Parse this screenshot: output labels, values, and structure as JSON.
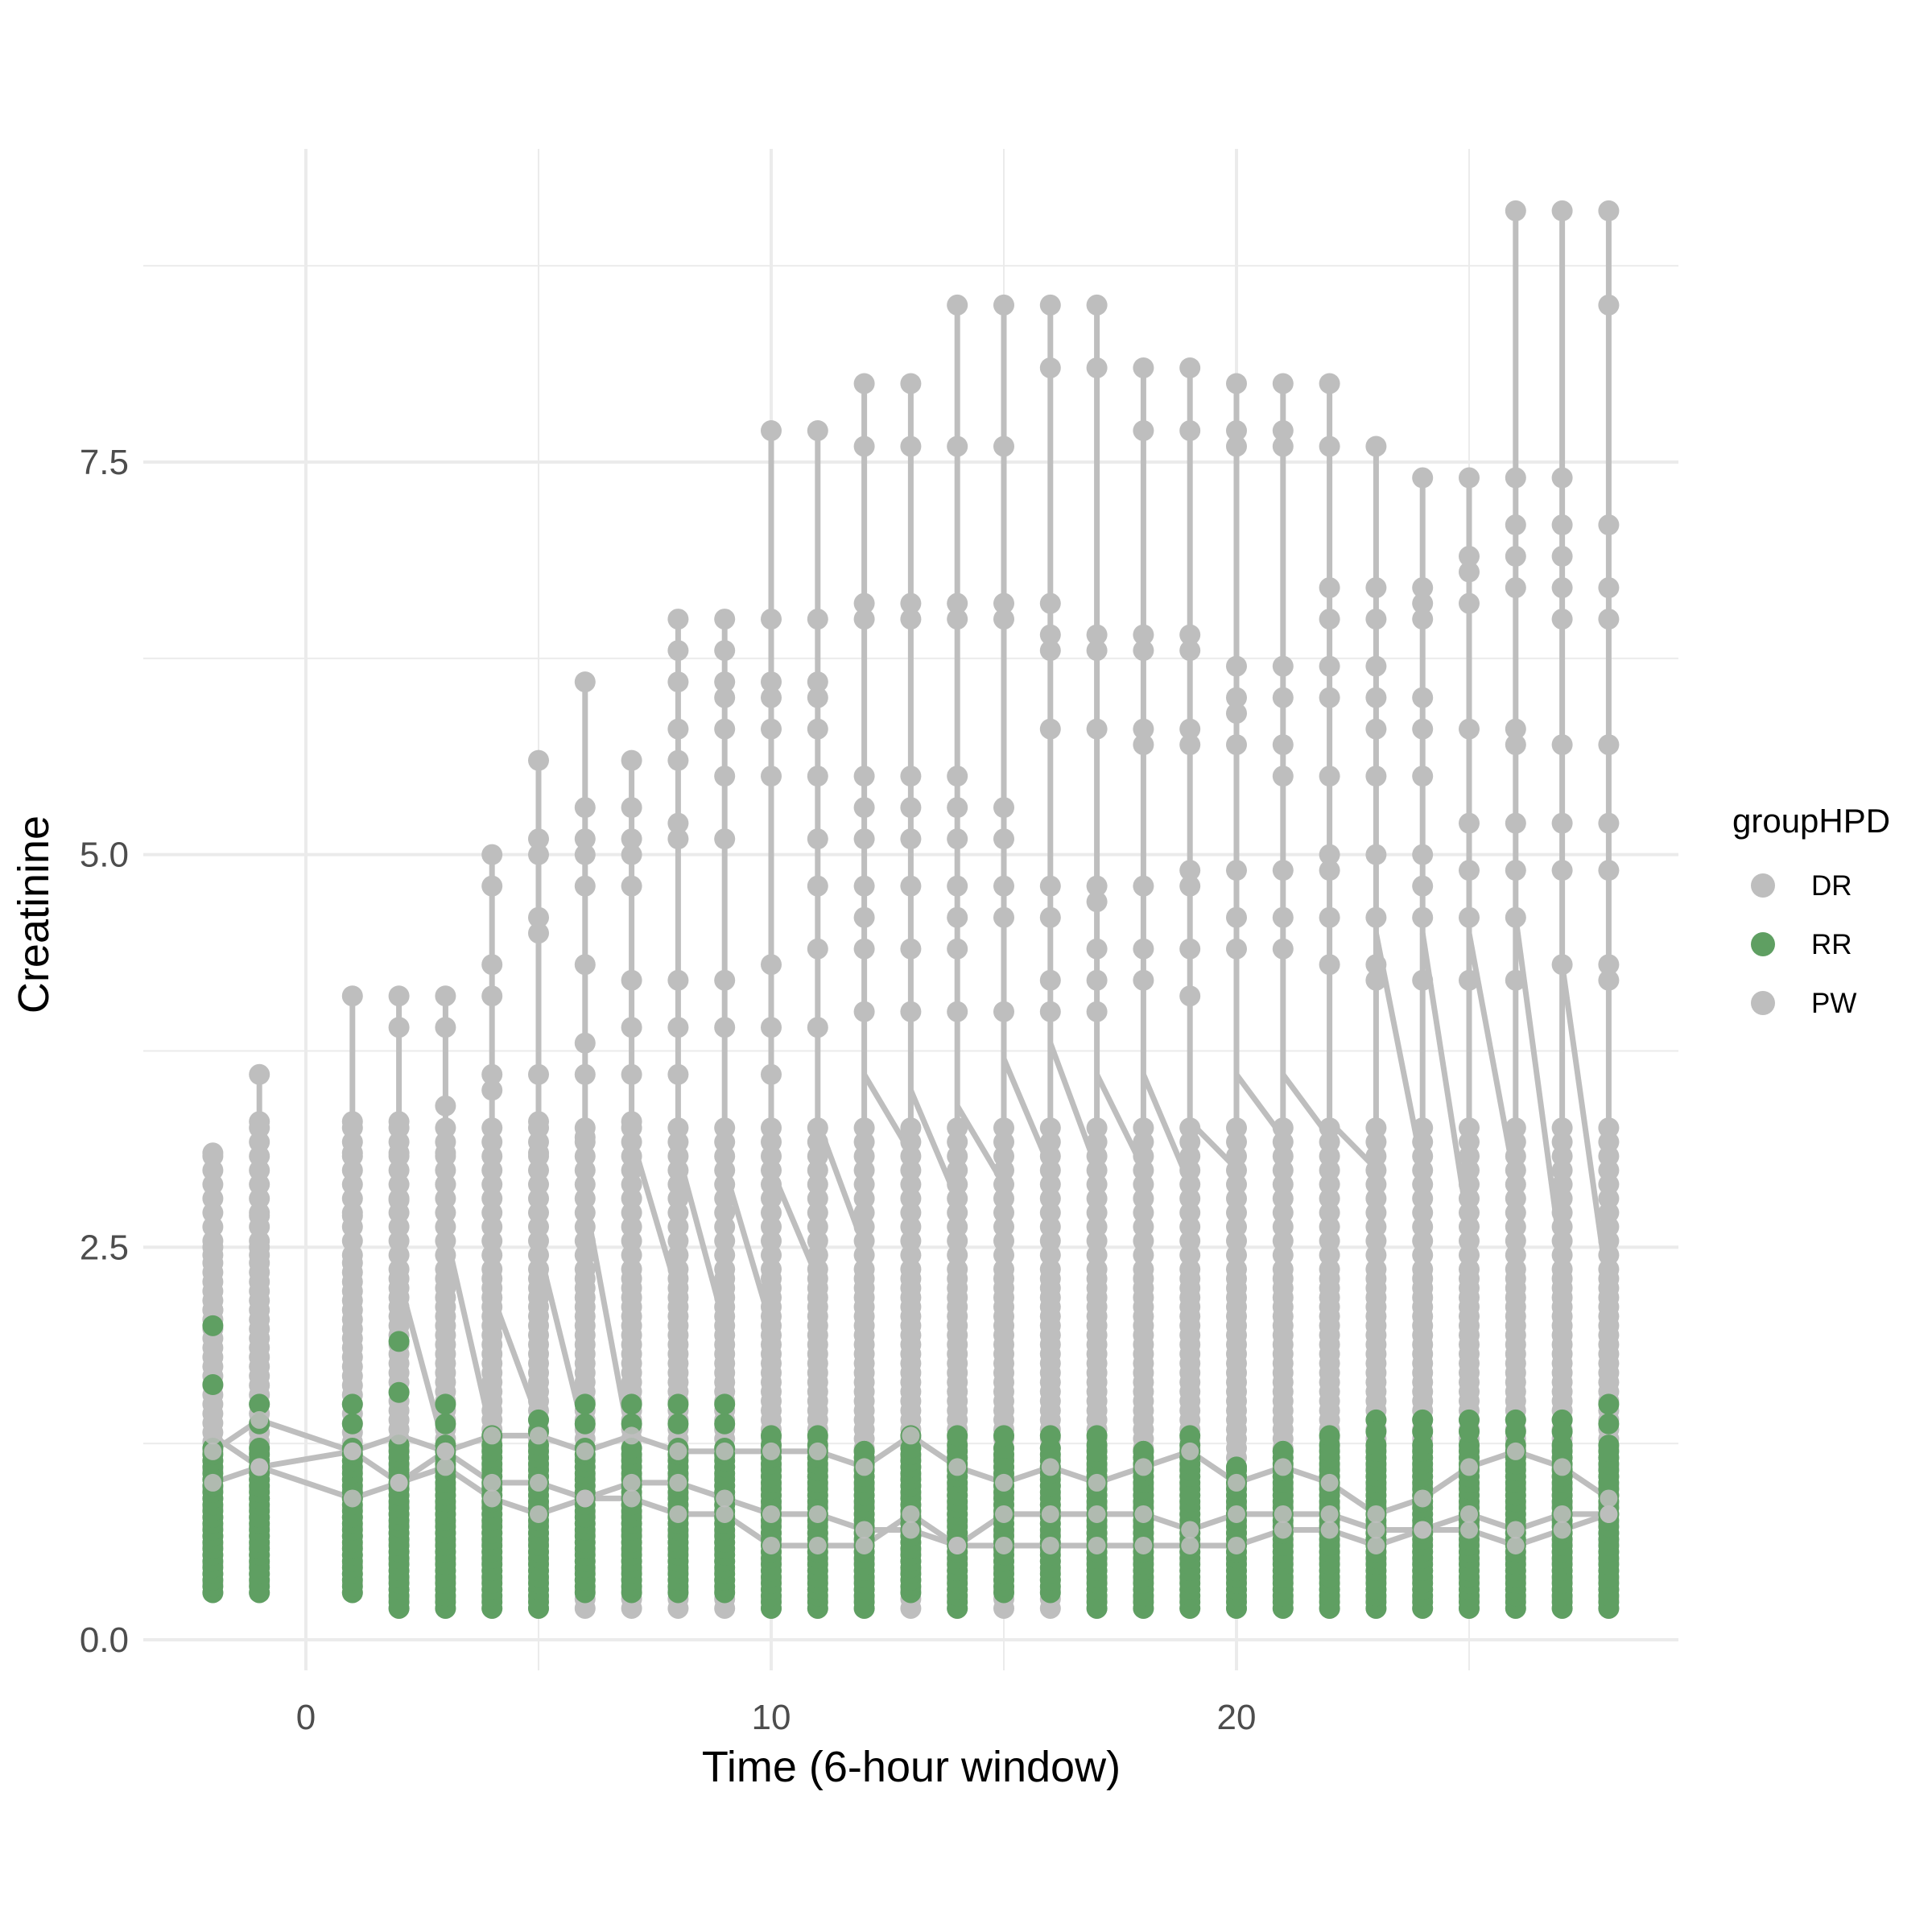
{
  "chart_data": {
    "type": "scatter",
    "title": "",
    "xlabel": "Time (6-hour window)",
    "ylabel": "Creatinine",
    "xlim": [
      -3.5,
      29.5
    ],
    "ylim": [
      -0.1,
      9.6
    ],
    "xticks": [
      0,
      10,
      20
    ],
    "yticks": [
      0.0,
      2.5,
      5.0,
      7.5
    ],
    "ytick_labels": [
      "0.0",
      "2.5",
      "5.0",
      "7.5"
    ],
    "grid": true,
    "legend": {
      "title": "groupHPD",
      "position": "right",
      "entries": [
        {
          "label": "DR",
          "color": "#bebebe"
        },
        {
          "label": "RR",
          "color": "#5f9f62"
        },
        {
          "label": "PW",
          "color": "#bebebe"
        }
      ]
    },
    "x_values": [
      -2,
      -1,
      1,
      2,
      3,
      4,
      5,
      6,
      7,
      8,
      9,
      10,
      11,
      12,
      13,
      14,
      15,
      16,
      17,
      18,
      19,
      20,
      21,
      22,
      23,
      24,
      25,
      26,
      27,
      28
    ],
    "gray_max": [
      3.1,
      3.6,
      4.1,
      4.1,
      4.1,
      5.0,
      5.6,
      6.1,
      5.6,
      6.5,
      6.5,
      7.7,
      7.7,
      8.0,
      8.0,
      8.5,
      8.5,
      8.5,
      8.5,
      8.1,
      8.1,
      8.0,
      8.0,
      8.0,
      7.6,
      7.4,
      7.4,
      9.1,
      9.1,
      9.1
    ],
    "gray_min": [
      0.3,
      0.3,
      0.3,
      0.2,
      0.2,
      0.2,
      0.2,
      0.2,
      0.2,
      0.2,
      0.2,
      0.2,
      0.2,
      0.2,
      0.2,
      0.2,
      0.2,
      0.2,
      0.2,
      0.2,
      0.2,
      0.2,
      0.2,
      0.2,
      0.2,
      0.2,
      0.2,
      0.2,
      0.2,
      0.2
    ],
    "gray_upper_points": [
      [
        2.5,
        2.1
      ],
      [
        3.3,
        2.7,
        2.5
      ],
      [
        3.3,
        3.1,
        2.7
      ],
      [
        3.9,
        3.3,
        3.1,
        2.8
      ],
      [
        3.9,
        3.4,
        3.1,
        2.9
      ],
      [
        4.8,
        4.3,
        4.1,
        3.6,
        3.5
      ],
      [
        5.1,
        5.0,
        4.6,
        4.5,
        3.6,
        3.3,
        3.1
      ],
      [
        5.3,
        5.1,
        5.0,
        4.8,
        4.3,
        3.8,
        3.6,
        3.2
      ],
      [
        5.3,
        5.1,
        5.0,
        4.8,
        4.2,
        3.9,
        3.6,
        3.3
      ],
      [
        6.3,
        6.1,
        5.8,
        5.6,
        5.2,
        5.1,
        4.2,
        3.9,
        3.6
      ],
      [
        6.3,
        6.1,
        6.0,
        5.8,
        5.5,
        5.1,
        4.2,
        3.9
      ],
      [
        6.5,
        6.1,
        6.0,
        5.8,
        5.5,
        4.3,
        3.9,
        3.6
      ],
      [
        6.5,
        6.1,
        6.0,
        5.8,
        5.5,
        5.1,
        4.8,
        4.4,
        3.9
      ],
      [
        7.6,
        6.6,
        6.5,
        5.5,
        5.3,
        5.1,
        4.8,
        4.6,
        4.4,
        4.0
      ],
      [
        7.6,
        6.6,
        6.5,
        5.5,
        5.3,
        5.1,
        4.8,
        4.4,
        4.0
      ],
      [
        7.6,
        6.6,
        6.5,
        5.5,
        5.3,
        5.1,
        4.8,
        4.6,
        4.4,
        4.0
      ],
      [
        7.6,
        6.6,
        6.5,
        5.3,
        5.1,
        4.8,
        4.6,
        4.0
      ],
      [
        8.1,
        6.6,
        6.4,
        6.3,
        5.8,
        4.8,
        4.6,
        4.2,
        4.0
      ],
      [
        8.1,
        6.4,
        6.3,
        5.8,
        4.8,
        4.7,
        4.4,
        4.2,
        4.0
      ],
      [
        7.7,
        6.4,
        6.3,
        5.8,
        5.7,
        4.8,
        4.4,
        4.2
      ],
      [
        7.7,
        6.4,
        6.3,
        5.8,
        5.7,
        4.9,
        4.8,
        4.4,
        4.1
      ],
      [
        7.7,
        7.6,
        6.2,
        6.0,
        5.9,
        5.7,
        4.9,
        4.6,
        4.4
      ],
      [
        7.7,
        7.6,
        6.2,
        6.0,
        5.7,
        5.5,
        4.9,
        4.6,
        4.4
      ],
      [
        7.6,
        6.7,
        6.5,
        6.2,
        6.0,
        5.5,
        5.0,
        4.9,
        4.6,
        4.3
      ],
      [
        6.7,
        6.5,
        6.2,
        6.0,
        5.8,
        5.5,
        5.0,
        4.6,
        4.3,
        4.2
      ],
      [
        6.7,
        6.6,
        6.5,
        6.0,
        5.8,
        5.5,
        5.0,
        4.8,
        4.6,
        4.2
      ],
      [
        6.9,
        6.8,
        6.6,
        5.8,
        5.2,
        4.9,
        4.6,
        4.2
      ],
      [
        7.4,
        7.1,
        6.9,
        6.7,
        5.8,
        5.7,
        5.2,
        4.9,
        4.6,
        4.2
      ],
      [
        7.4,
        7.1,
        6.9,
        6.7,
        6.5,
        5.7,
        5.2,
        4.9,
        4.3
      ],
      [
        8.5,
        7.1,
        6.7,
        6.5,
        5.7,
        5.2,
        4.9,
        4.3,
        4.2
      ]
    ],
    "green_max": [
      2.0,
      1.5,
      1.5,
      1.9,
      1.5,
      1.3,
      1.4,
      1.5,
      1.5,
      1.5,
      1.5,
      1.3,
      1.3,
      1.2,
      1.3,
      1.3,
      1.3,
      1.3,
      1.3,
      1.2,
      1.3,
      1.1,
      1.2,
      1.3,
      1.4,
      1.4,
      1.4,
      1.4,
      1.4,
      1.5
    ],
    "green_min": [
      0.3,
      0.3,
      0.3,
      0.2,
      0.2,
      0.2,
      0.2,
      0.3,
      0.3,
      0.3,
      0.3,
      0.2,
      0.2,
      0.2,
      0.3,
      0.2,
      0.3,
      0.3,
      0.2,
      0.2,
      0.2,
      0.2,
      0.2,
      0.2,
      0.2,
      0.2,
      0.2,
      0.2,
      0.2,
      0.2
    ],
    "trajectories": [
      [
        [
          -2,
          1.3
        ],
        [
          -1,
          1.1
        ],
        [
          1,
          1.2
        ],
        [
          2,
          1.3
        ],
        [
          3,
          1.2
        ],
        [
          4,
          1.3
        ],
        [
          5,
          1.3
        ],
        [
          6,
          1.2
        ],
        [
          7,
          1.3
        ],
        [
          8,
          1.2
        ],
        [
          9,
          1.2
        ],
        [
          10,
          1.2
        ],
        [
          11,
          1.2
        ],
        [
          12,
          1.1
        ],
        [
          13,
          1.3
        ],
        [
          14,
          1.1
        ],
        [
          15,
          1.0
        ],
        [
          16,
          1.1
        ],
        [
          17,
          1.0
        ],
        [
          18,
          1.1
        ],
        [
          19,
          1.2
        ],
        [
          20,
          1.0
        ],
        [
          21,
          1.1
        ],
        [
          22,
          1.0
        ],
        [
          23,
          0.8
        ],
        [
          24,
          0.9
        ],
        [
          25,
          1.1
        ],
        [
          26,
          1.2
        ],
        [
          27,
          1.1
        ],
        [
          28,
          0.9
        ]
      ],
      [
        [
          -2,
          1.2
        ],
        [
          -1,
          1.4
        ],
        [
          1,
          1.2
        ],
        [
          2,
          1.0
        ],
        [
          3,
          1.1
        ],
        [
          4,
          0.9
        ],
        [
          5,
          0.8
        ],
        [
          6,
          0.9
        ],
        [
          7,
          1.0
        ],
        [
          8,
          1.0
        ],
        [
          9,
          0.9
        ],
        [
          10,
          0.8
        ],
        [
          11,
          0.8
        ],
        [
          12,
          0.7
        ],
        [
          13,
          0.7
        ],
        [
          14,
          0.6
        ],
        [
          15,
          0.8
        ],
        [
          16,
          0.8
        ],
        [
          17,
          0.8
        ],
        [
          18,
          0.8
        ],
        [
          19,
          0.7
        ],
        [
          20,
          0.8
        ],
        [
          21,
          0.8
        ],
        [
          22,
          0.8
        ],
        [
          23,
          0.7
        ],
        [
          24,
          0.7
        ],
        [
          25,
          0.7
        ],
        [
          26,
          0.6
        ],
        [
          27,
          0.7
        ],
        [
          28,
          0.8
        ]
      ],
      [
        [
          -2,
          1.0
        ],
        [
          -1,
          1.1
        ],
        [
          1,
          0.9
        ],
        [
          2,
          1.0
        ],
        [
          3,
          1.2
        ],
        [
          4,
          1.0
        ],
        [
          5,
          1.0
        ],
        [
          6,
          0.9
        ],
        [
          7,
          0.9
        ],
        [
          8,
          0.8
        ],
        [
          9,
          0.8
        ],
        [
          10,
          0.6
        ],
        [
          11,
          0.6
        ],
        [
          12,
          0.6
        ],
        [
          13,
          0.8
        ],
        [
          14,
          0.6
        ],
        [
          15,
          0.6
        ],
        [
          16,
          0.6
        ],
        [
          17,
          0.6
        ],
        [
          18,
          0.6
        ],
        [
          19,
          0.6
        ],
        [
          20,
          0.6
        ],
        [
          21,
          0.7
        ],
        [
          22,
          0.7
        ],
        [
          23,
          0.6
        ],
        [
          24,
          0.7
        ],
        [
          25,
          0.8
        ],
        [
          26,
          0.7
        ],
        [
          27,
          0.8
        ],
        [
          28,
          0.8
        ]
      ],
      [
        [
          2,
          2.3
        ],
        [
          3,
          1.2
        ]
      ],
      [
        [
          3,
          2.6
        ],
        [
          4,
          1.3
        ]
      ],
      [
        [
          4,
          2.2
        ],
        [
          5,
          1.4
        ]
      ],
      [
        [
          5,
          2.5
        ],
        [
          6,
          1.3
        ]
      ],
      [
        [
          6,
          2.8
        ],
        [
          7,
          1.2
        ]
      ],
      [
        [
          7,
          3.2
        ],
        [
          8,
          2.2
        ]
      ],
      [
        [
          8,
          3.1
        ],
        [
          9,
          2.0
        ]
      ],
      [
        [
          9,
          3.0
        ],
        [
          10,
          2.0
        ]
      ],
      [
        [
          10,
          3.0
        ],
        [
          11,
          2.3
        ]
      ],
      [
        [
          11,
          3.3
        ],
        [
          12,
          2.5
        ]
      ],
      [
        [
          12,
          3.6
        ],
        [
          13,
          3.1
        ]
      ],
      [
        [
          13,
          3.5
        ],
        [
          14,
          2.8
        ]
      ],
      [
        [
          14,
          3.4
        ],
        [
          15,
          2.9
        ]
      ],
      [
        [
          15,
          3.7
        ],
        [
          16,
          3.0
        ]
      ],
      [
        [
          16,
          3.8
        ],
        [
          17,
          3.0
        ]
      ],
      [
        [
          17,
          3.6
        ],
        [
          18,
          3.0
        ]
      ],
      [
        [
          18,
          3.6
        ],
        [
          19,
          2.9
        ]
      ],
      [
        [
          19,
          3.3
        ],
        [
          20,
          3.0
        ]
      ],
      [
        [
          20,
          3.6
        ],
        [
          21,
          3.2
        ]
      ],
      [
        [
          21,
          3.6
        ],
        [
          22,
          3.2
        ]
      ],
      [
        [
          22,
          3.3
        ],
        [
          23,
          3.0
        ]
      ],
      [
        [
          23,
          4.5
        ],
        [
          24,
          3.0
        ]
      ],
      [
        [
          24,
          4.5
        ],
        [
          25,
          2.6
        ]
      ],
      [
        [
          25,
          4.5
        ],
        [
          26,
          2.9
        ]
      ],
      [
        [
          26,
          4.6
        ],
        [
          27,
          2.4
        ]
      ],
      [
        [
          27,
          4.3
        ],
        [
          28,
          2.2
        ]
      ]
    ]
  }
}
